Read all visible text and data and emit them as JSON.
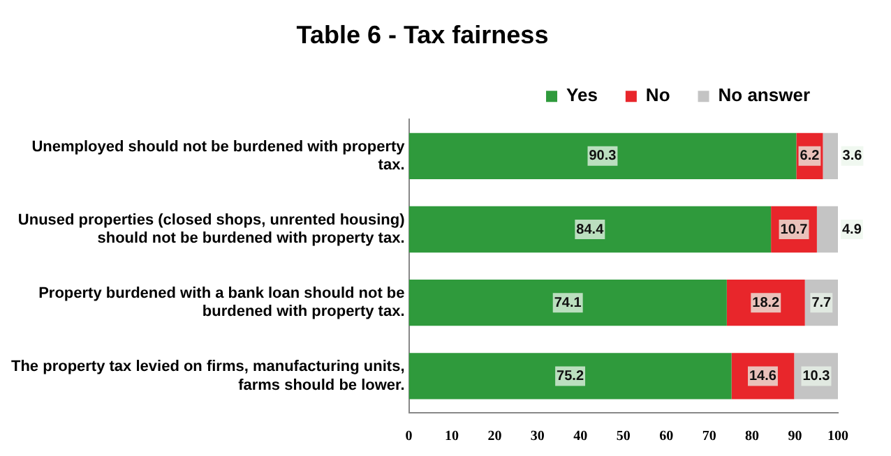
{
  "chart_data": {
    "type": "bar",
    "title": "Table 6 - Tax fairness",
    "orientation": "horizontal",
    "stacked": true,
    "categories": [
      "Unemployed should not be burdened with property tax.",
      "Unused properties (closed shops, unrented housing) should not be burdened with property tax.",
      "Property burdened with a bank loan should not be burdened with property tax.",
      "The property tax levied on firms, manufacturing units, farms should be lower."
    ],
    "series": [
      {
        "name": "Yes",
        "color": "#2f9a3c",
        "values": [
          90.3,
          84.4,
          74.1,
          75.2
        ]
      },
      {
        "name": "No",
        "color": "#e8262b",
        "values": [
          6.2,
          10.7,
          18.2,
          14.6
        ]
      },
      {
        "name": "No answer",
        "color": "#c4c4c4",
        "values": [
          3.6,
          4.9,
          7.7,
          10.3
        ]
      }
    ],
    "xlim": [
      0,
      100
    ],
    "xticks": [
      0,
      10,
      20,
      30,
      40,
      50,
      60,
      70,
      80,
      90,
      100
    ],
    "grid": false,
    "legend": "top",
    "data_labels": true
  }
}
